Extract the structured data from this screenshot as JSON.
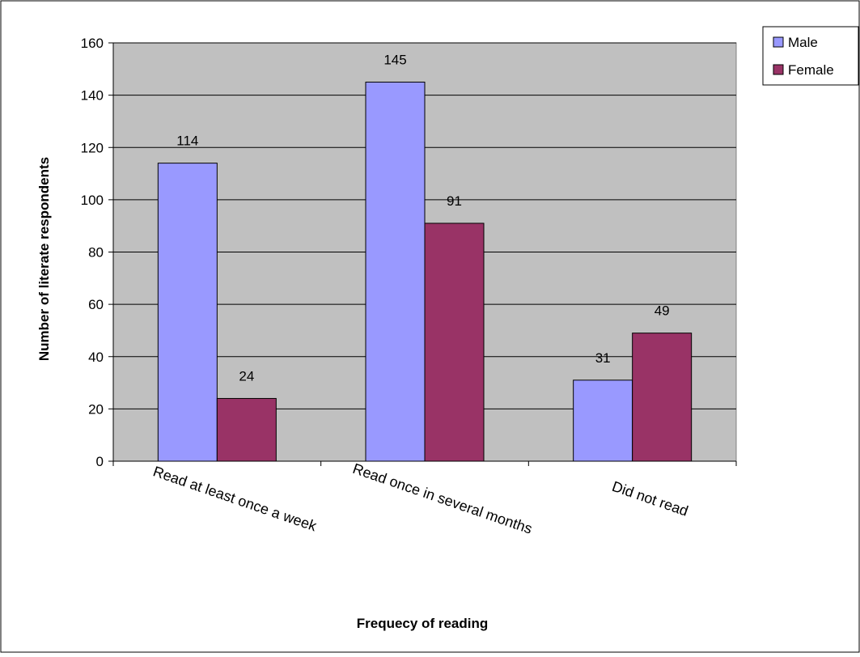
{
  "chart_data": {
    "type": "bar",
    "xlabel": "Frequecy of reading",
    "ylabel": "Number of literate respondents",
    "categories": [
      "Read at least once a week",
      "Read once in several months",
      "Did not read"
    ],
    "series": [
      {
        "name": "Male",
        "values": [
          114,
          145,
          31
        ],
        "color": "#9999ff"
      },
      {
        "name": "Female",
        "values": [
          24,
          91,
          49
        ],
        "color": "#993366"
      }
    ],
    "ylim": [
      0,
      160
    ],
    "yticks": [
      0,
      20,
      40,
      60,
      80,
      100,
      120,
      140,
      160
    ],
    "grid": true,
    "plot_background": "#c0c0c0",
    "legend_position": "top-right"
  }
}
